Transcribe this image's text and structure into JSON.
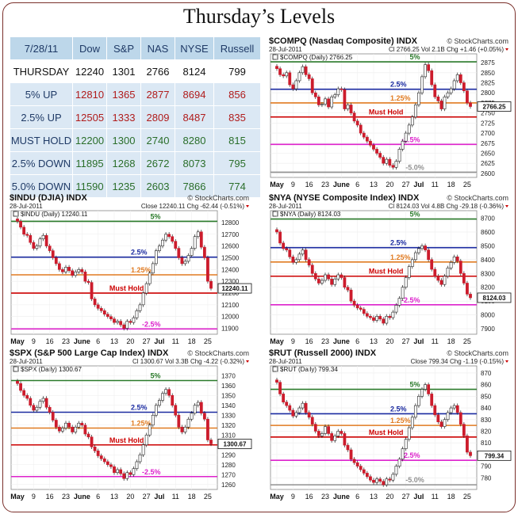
{
  "title": "Thursday’s Levels",
  "table": {
    "header": [
      "7/28/11",
      "Dow",
      "S&P",
      "NAS",
      "NYSE",
      "Russell"
    ],
    "current": {
      "label": "THURSDAY",
      "values": [
        "12240",
        "1301",
        "2766",
        "8124",
        "799"
      ]
    },
    "rows": [
      {
        "label": "5% UP",
        "values": [
          "12810",
          "1365",
          "2877",
          "8694",
          "856"
        ],
        "color": "#b01c1c"
      },
      {
        "label": "2.5% UP",
        "values": [
          "12505",
          "1333",
          "2809",
          "8487",
          "835"
        ],
        "color": "#b01c1c"
      },
      {
        "label": "MUST HOLD",
        "values": [
          "12200",
          "1300",
          "2740",
          "8280",
          "815"
        ],
        "color": "#2a6e2a"
      },
      {
        "label": "2.5% DOWN",
        "values": [
          "11895",
          "1268",
          "2672",
          "8073",
          "795"
        ],
        "color": "#2a6e2a"
      },
      {
        "label": "5.0% DOWN",
        "values": [
          "11590",
          "1235",
          "2603",
          "7866",
          "774"
        ],
        "color": "#2a6e2a"
      }
    ]
  },
  "colors": {
    "up": "#ffffff",
    "down": "#cc1c2c",
    "green_line": "#2a7a2a",
    "blue_line": "#1a2aa0",
    "orange_line": "#e07a20",
    "red_line": "#cc0000",
    "magenta_line": "#dd22cc",
    "gray_line": "#909090"
  },
  "chart_data": [
    {
      "type": "candlestick",
      "id": "compq",
      "title": "$COMPQ (Nasdaq Composite) INDX",
      "credit": "© StockCharts.com",
      "date": "28-Jul-2011",
      "close": "Cl 2766.25",
      "vol": "Vol 2.1B",
      "chg": "Chg +1.46 (+0.05%)",
      "legend": "$COMPQ (Daily) 2766.25",
      "last_label": "2766.25",
      "ylim": [
        2590,
        2885
      ],
      "yticks": [
        2600,
        2625,
        2650,
        2675,
        2700,
        2725,
        2750,
        2775,
        2800,
        2825,
        2850,
        2875
      ],
      "xlabels": [
        "May",
        "9",
        "16",
        "23",
        "June",
        "6",
        "13",
        "20",
        "27",
        "Jul",
        "11",
        "18",
        "25"
      ],
      "levels": [
        {
          "name": "5%",
          "value": 2877,
          "color": "#2a7a2a"
        },
        {
          "name": "2.5%",
          "value": 2809,
          "color": "#1a2aa0"
        },
        {
          "name": "1.25%",
          "value": 2775,
          "color": "#e07a20"
        },
        {
          "name": "Must Hold",
          "value": 2740,
          "color": "#cc0000"
        },
        {
          "name": "-2.5%",
          "value": 2672,
          "color": "#dd22cc"
        },
        {
          "name": "-5.0%",
          "value": 2603,
          "color": "#909090"
        }
      ],
      "closes": [
        2860,
        2845,
        2842,
        2850,
        2820,
        2810,
        2830,
        2850,
        2865,
        2845,
        2835,
        2800,
        2790,
        2770,
        2772,
        2785,
        2765,
        2790,
        2795,
        2810,
        2808,
        2760,
        2770,
        2750,
        2730,
        2720,
        2700,
        2690,
        2680,
        2670,
        2660,
        2650,
        2640,
        2625,
        2635,
        2620,
        2615,
        2630,
        2660,
        2680,
        2700,
        2720,
        2740,
        2770,
        2800,
        2840,
        2870,
        2855,
        2820,
        2790,
        2780,
        2760,
        2790,
        2800,
        2810,
        2830,
        2845,
        2825,
        2805,
        2775,
        2766
      ]
    },
    {
      "type": "candlestick",
      "id": "indu",
      "title": "$INDU (DJIA) INDX",
      "credit": "© StockCharts.com",
      "date": "28-Jul-2011",
      "close": "Close 12240.11",
      "vol": "",
      "chg": "Chg -62.44 (-0.51%)",
      "legend": "$INDU (Daily) 12240.11",
      "last_label": "12240.11",
      "ylim": [
        11850,
        12860
      ],
      "yticks": [
        11900,
        12000,
        12100,
        12200,
        12300,
        12400,
        12500,
        12600,
        12700,
        12800
      ],
      "xlabels": [
        "May",
        "9",
        "16",
        "23",
        "June",
        "6",
        "13",
        "20",
        "27",
        "Jul",
        "11",
        "18",
        "25"
      ],
      "levels": [
        {
          "name": "5%",
          "value": 12810,
          "color": "#2a7a2a"
        },
        {
          "name": "2.5%",
          "value": 12505,
          "color": "#1a2aa0"
        },
        {
          "name": "1.25%",
          "value": 12355,
          "color": "#e07a20"
        },
        {
          "name": "Must Hold",
          "value": 12200,
          "color": "#cc0000"
        },
        {
          "name": "-2.5%",
          "value": 11895,
          "color": "#dd22cc"
        }
      ],
      "closes": [
        12810,
        12760,
        12700,
        12690,
        12630,
        12580,
        12600,
        12660,
        12690,
        12600,
        12560,
        12500,
        12450,
        12400,
        12380,
        12420,
        12390,
        12350,
        12380,
        12400,
        12380,
        12300,
        12290,
        12150,
        12100,
        12070,
        12050,
        12020,
        12000,
        11980,
        11950,
        11960,
        11930,
        11900,
        11960,
        11950,
        11990,
        12050,
        12100,
        12200,
        12280,
        12370,
        12450,
        12560,
        12600,
        12650,
        12700,
        12680,
        12640,
        12580,
        12500,
        12450,
        12470,
        12520,
        12580,
        12680,
        12720,
        12590,
        12500,
        12300,
        12240
      ]
    },
    {
      "type": "candlestick",
      "id": "nya",
      "title": "$NYA (NYSE Composite Index) INDX",
      "credit": "© StockCharts.com",
      "date": "28-Jul-2011",
      "close": "Cl 8124.03",
      "vol": "Vol 4.8B",
      "chg": "Chg -29.18 (-0.36%)",
      "legend": "$NYA (Daily) 8124.03",
      "last_label": "8124.03",
      "ylim": [
        7860,
        8720
      ],
      "yticks": [
        7900,
        8000,
        8100,
        8200,
        8300,
        8400,
        8500,
        8600,
        8700
      ],
      "xlabels": [
        "May",
        "9",
        "16",
        "23",
        "June",
        "6",
        "13",
        "20",
        "27",
        "Jul",
        "11",
        "18",
        "25"
      ],
      "levels": [
        {
          "name": "5%",
          "value": 8694,
          "color": "#2a7a2a"
        },
        {
          "name": "2.5%",
          "value": 8487,
          "color": "#1a2aa0"
        },
        {
          "name": "1.25%",
          "value": 8383,
          "color": "#e07a20"
        },
        {
          "name": "Must Hold",
          "value": 8280,
          "color": "#cc0000"
        },
        {
          "name": "-2.5%",
          "value": 8073,
          "color": "#dd22cc"
        }
      ],
      "closes": [
        8600,
        8520,
        8480,
        8470,
        8420,
        8380,
        8400,
        8440,
        8470,
        8400,
        8360,
        8300,
        8260,
        8230,
        8250,
        8290,
        8260,
        8220,
        8260,
        8290,
        8270,
        8200,
        8180,
        8100,
        8070,
        8050,
        8040,
        8010,
        7990,
        7980,
        7960,
        7990,
        7970,
        7940,
        7990,
        7980,
        8020,
        8070,
        8120,
        8200,
        8270,
        8350,
        8400,
        8450,
        8480,
        8500,
        8470,
        8400,
        8330,
        8280,
        8250,
        8220,
        8280,
        8340,
        8380,
        8420,
        8390,
        8300,
        8230,
        8150,
        8124
      ]
    },
    {
      "type": "candlestick",
      "id": "spx",
      "title": "$SPX (S&P 500 Large Cap Index) INDX",
      "credit": "© StockCharts.com",
      "date": "28-Jul-2011",
      "close": "Cl 1300.67",
      "vol": "Vol 3.3B",
      "chg": "Chg -4.22 (-0.32%)",
      "legend": "$SPX (Daily) 1300.67",
      "last_label": "1300.67",
      "ylim": [
        1255,
        1375
      ],
      "yticks": [
        1260,
        1270,
        1280,
        1290,
        1300,
        1310,
        1320,
        1330,
        1340,
        1350,
        1360,
        1370
      ],
      "xlabels": [
        "May",
        "9",
        "16",
        "23",
        "June",
        "6",
        "13",
        "20",
        "27",
        "Jul",
        "11",
        "18",
        "25"
      ],
      "levels": [
        {
          "name": "5%",
          "value": 1365,
          "color": "#2a7a2a"
        },
        {
          "name": "2.5%",
          "value": 1333,
          "color": "#1a2aa0"
        },
        {
          "name": "1.25%",
          "value": 1317,
          "color": "#e07a20"
        },
        {
          "name": "Must Hold",
          "value": 1300,
          "color": "#cc0000"
        },
        {
          "name": "-2.5%",
          "value": 1268,
          "color": "#dd22cc"
        }
      ],
      "closes": [
        1362,
        1355,
        1350,
        1347,
        1340,
        1335,
        1338,
        1344,
        1347,
        1338,
        1333,
        1325,
        1318,
        1314,
        1317,
        1322,
        1318,
        1313,
        1318,
        1322,
        1320,
        1311,
        1308,
        1298,
        1294,
        1289,
        1286,
        1283,
        1280,
        1278,
        1272,
        1275,
        1271,
        1266,
        1272,
        1270,
        1276,
        1283,
        1290,
        1300,
        1310,
        1320,
        1330,
        1340,
        1345,
        1352,
        1356,
        1350,
        1340,
        1330,
        1318,
        1313,
        1318,
        1326,
        1332,
        1340,
        1343,
        1332,
        1326,
        1305,
        1301
      ]
    },
    {
      "type": "candlestick",
      "id": "rut",
      "title": "$RUT (Russell 2000) INDX",
      "credit": "© StockCharts.com",
      "date": "28-Jul-2011",
      "close": "Close 799.34",
      "vol": "",
      "chg": "Chg -1.19 (-0.15%)",
      "legend": "$RUT (Daily) 799.34",
      "last_label": "799.34",
      "ylim": [
        770,
        872
      ],
      "yticks": [
        780,
        790,
        800,
        810,
        820,
        830,
        840,
        850,
        860,
        870
      ],
      "xlabels": [
        "May",
        "9",
        "16",
        "23",
        "June",
        "6",
        "13",
        "20",
        "27",
        "Jul",
        "11",
        "18",
        "25"
      ],
      "levels": [
        {
          "name": "5%",
          "value": 856,
          "color": "#2a7a2a"
        },
        {
          "name": "2.5%",
          "value": 835,
          "color": "#1a2aa0"
        },
        {
          "name": "1.25%",
          "value": 825,
          "color": "#e07a20"
        },
        {
          "name": "Must Hold",
          "value": 815,
          "color": "#cc0000"
        },
        {
          "name": "-2.5%",
          "value": 795,
          "color": "#dd22cc"
        },
        {
          "name": "-5.0%",
          "value": 774,
          "color": "#909090"
        }
      ],
      "closes": [
        862,
        852,
        845,
        842,
        838,
        833,
        836,
        840,
        844,
        836,
        832,
        826,
        820,
        816,
        818,
        824,
        818,
        812,
        816,
        820,
        818,
        808,
        804,
        796,
        793,
        790,
        787,
        784,
        781,
        778,
        776,
        779,
        777,
        774,
        779,
        778,
        783,
        790,
        796,
        805,
        813,
        823,
        832,
        842,
        850,
        856,
        860,
        852,
        842,
        834,
        828,
        824,
        830,
        836,
        840,
        842,
        836,
        826,
        816,
        802,
        799
      ]
    }
  ]
}
